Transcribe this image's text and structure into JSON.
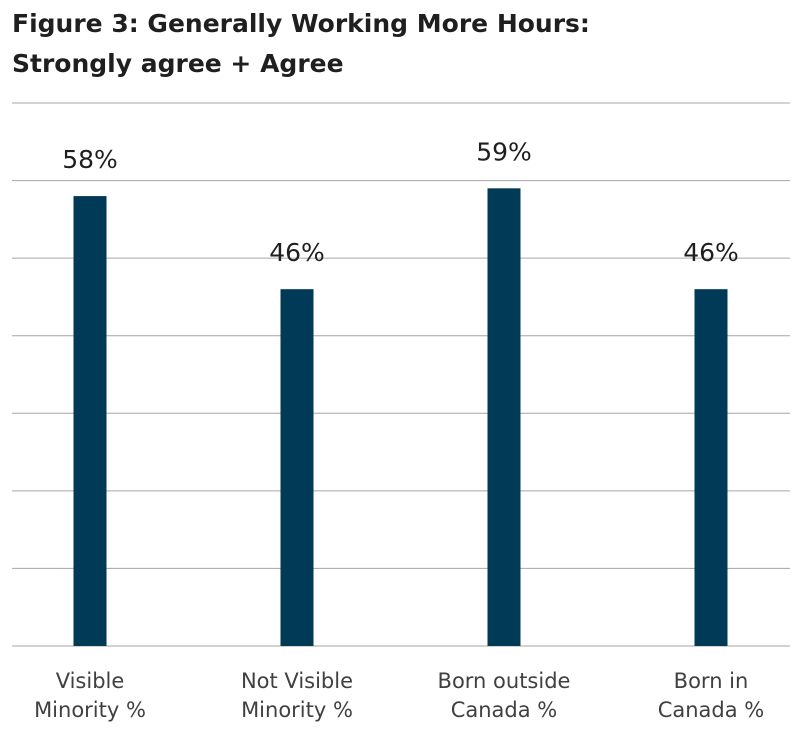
{
  "chart_data": {
    "type": "bar",
    "title_lines": [
      "Figure 3: Generally Working More Hours:",
      "Strongly agree + Agree"
    ],
    "categories": [
      [
        "Visible",
        "Minority %"
      ],
      [
        "Not Visible",
        "Minority %"
      ],
      [
        "Born outside",
        "Canada %"
      ],
      [
        "Born in",
        "Canada %"
      ]
    ],
    "values": [
      58,
      46,
      59,
      46
    ],
    "value_labels": [
      "58%",
      "46%",
      "59%",
      "46%"
    ],
    "ylim": [
      0,
      70
    ],
    "grid": true,
    "bar_color": "#003a57",
    "grid_color": "#a6a6a6"
  }
}
